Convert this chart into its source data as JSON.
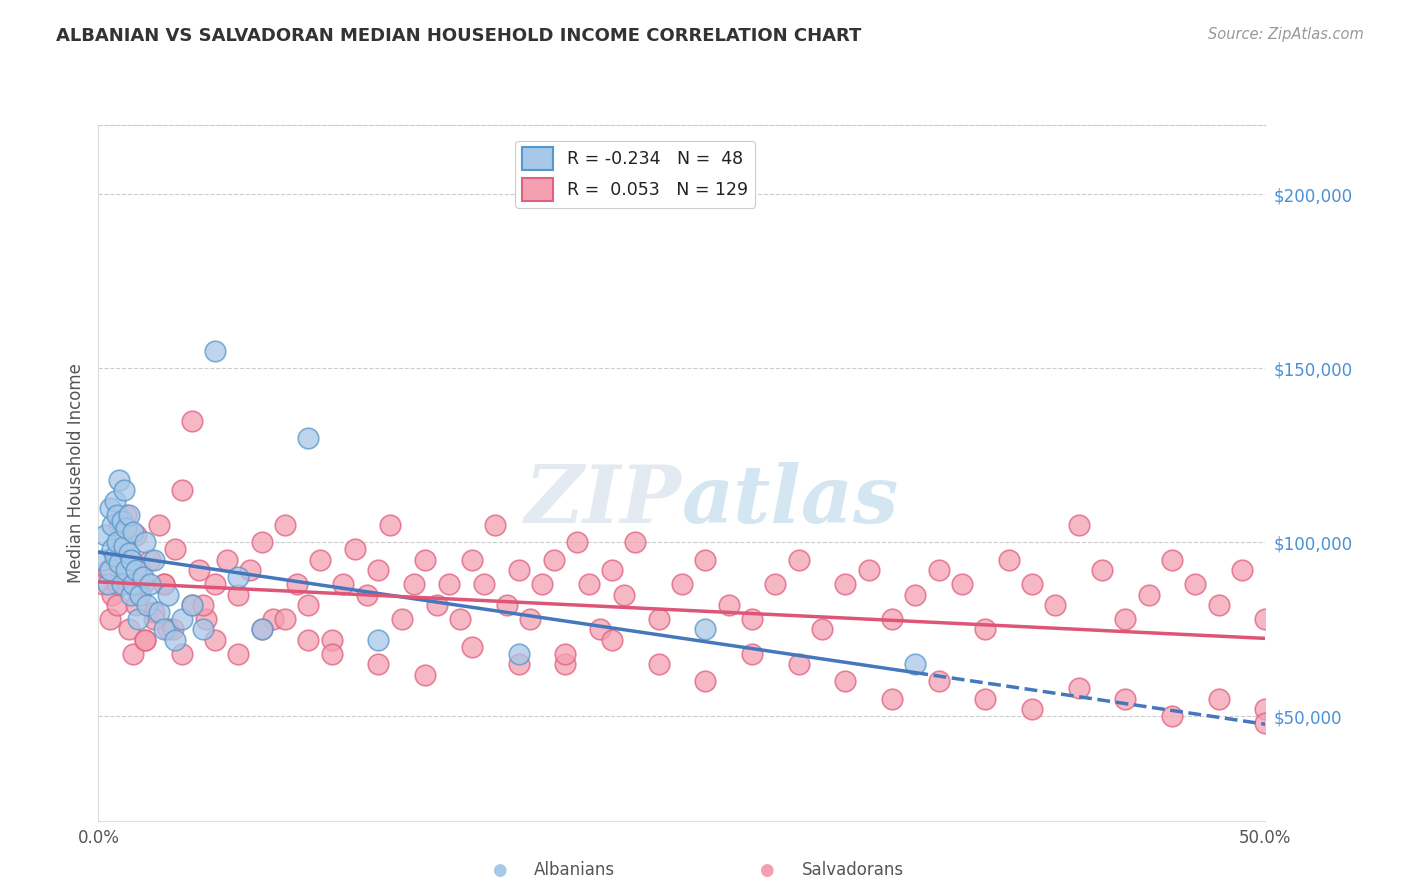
{
  "title": "ALBANIAN VS SALVADORAN MEDIAN HOUSEHOLD INCOME CORRELATION CHART",
  "source": "Source: ZipAtlas.com",
  "ylabel": "Median Household Income",
  "yticks": [
    50000,
    100000,
    150000,
    200000
  ],
  "ytick_labels": [
    "$50,000",
    "$100,000",
    "$150,000",
    "$200,000"
  ],
  "xmin": 0.0,
  "xmax": 0.5,
  "ymin": 20000,
  "ymax": 220000,
  "legend_r_albanian": "-0.234",
  "legend_n_albanian": "48",
  "legend_r_salvadoran": "0.053",
  "legend_n_salvadoran": "129",
  "albanian_fill": "#A8C8E8",
  "salvadoran_fill": "#F4A0B0",
  "albanian_edge": "#5599CC",
  "salvadoran_edge": "#E06080",
  "albanian_line": "#4477BB",
  "salvadoran_line": "#DD5577",
  "albanian_scatter_x": [
    0.002,
    0.003,
    0.004,
    0.005,
    0.005,
    0.006,
    0.006,
    0.007,
    0.007,
    0.008,
    0.008,
    0.009,
    0.009,
    0.01,
    0.01,
    0.011,
    0.011,
    0.012,
    0.012,
    0.013,
    0.013,
    0.014,
    0.014,
    0.015,
    0.015,
    0.016,
    0.017,
    0.018,
    0.019,
    0.02,
    0.021,
    0.022,
    0.024,
    0.026,
    0.028,
    0.03,
    0.033,
    0.036,
    0.04,
    0.045,
    0.05,
    0.06,
    0.07,
    0.09,
    0.12,
    0.18,
    0.26,
    0.35
  ],
  "albanian_scatter_y": [
    95000,
    102000,
    88000,
    92000,
    110000,
    98000,
    105000,
    96000,
    112000,
    100000,
    108000,
    94000,
    118000,
    106000,
    88000,
    115000,
    99000,
    104000,
    92000,
    97000,
    108000,
    85000,
    95000,
    103000,
    88000,
    92000,
    78000,
    85000,
    90000,
    100000,
    82000,
    88000,
    95000,
    80000,
    75000,
    85000,
    72000,
    78000,
    82000,
    75000,
    155000,
    90000,
    75000,
    130000,
    72000,
    68000,
    75000,
    65000
  ],
  "salvadoran_scatter_x": [
    0.002,
    0.004,
    0.005,
    0.006,
    0.007,
    0.008,
    0.009,
    0.01,
    0.011,
    0.012,
    0.013,
    0.014,
    0.015,
    0.016,
    0.017,
    0.018,
    0.019,
    0.02,
    0.022,
    0.024,
    0.026,
    0.028,
    0.03,
    0.033,
    0.036,
    0.04,
    0.043,
    0.046,
    0.05,
    0.055,
    0.06,
    0.065,
    0.07,
    0.075,
    0.08,
    0.085,
    0.09,
    0.095,
    0.1,
    0.105,
    0.11,
    0.115,
    0.12,
    0.125,
    0.13,
    0.135,
    0.14,
    0.145,
    0.15,
    0.155,
    0.16,
    0.165,
    0.17,
    0.175,
    0.18,
    0.185,
    0.19,
    0.195,
    0.2,
    0.205,
    0.21,
    0.215,
    0.22,
    0.225,
    0.23,
    0.24,
    0.25,
    0.26,
    0.27,
    0.28,
    0.29,
    0.3,
    0.31,
    0.32,
    0.33,
    0.34,
    0.35,
    0.36,
    0.37,
    0.38,
    0.39,
    0.4,
    0.41,
    0.42,
    0.43,
    0.44,
    0.45,
    0.46,
    0.47,
    0.48,
    0.49,
    0.5,
    0.008,
    0.012,
    0.016,
    0.02,
    0.024,
    0.028,
    0.032,
    0.036,
    0.04,
    0.045,
    0.05,
    0.06,
    0.07,
    0.08,
    0.09,
    0.1,
    0.12,
    0.14,
    0.16,
    0.18,
    0.2,
    0.22,
    0.24,
    0.26,
    0.28,
    0.3,
    0.32,
    0.34,
    0.36,
    0.38,
    0.4,
    0.42,
    0.44,
    0.46,
    0.48,
    0.5,
    0.5
  ],
  "salvadoran_scatter_y": [
    88000,
    92000,
    78000,
    85000,
    95000,
    82000,
    105000,
    98000,
    88000,
    108000,
    75000,
    95000,
    68000,
    102000,
    85000,
    92000,
    88000,
    72000,
    95000,
    80000,
    105000,
    88000,
    75000,
    98000,
    115000,
    82000,
    92000,
    78000,
    88000,
    95000,
    85000,
    92000,
    100000,
    78000,
    105000,
    88000,
    82000,
    95000,
    72000,
    88000,
    98000,
    85000,
    92000,
    105000,
    78000,
    88000,
    95000,
    82000,
    88000,
    78000,
    95000,
    88000,
    105000,
    82000,
    92000,
    78000,
    88000,
    95000,
    65000,
    100000,
    88000,
    75000,
    92000,
    85000,
    100000,
    78000,
    88000,
    95000,
    82000,
    78000,
    88000,
    95000,
    75000,
    88000,
    92000,
    78000,
    85000,
    92000,
    88000,
    75000,
    95000,
    88000,
    82000,
    105000,
    92000,
    78000,
    85000,
    95000,
    88000,
    82000,
    92000,
    78000,
    88000,
    95000,
    82000,
    72000,
    78000,
    88000,
    75000,
    68000,
    135000,
    82000,
    72000,
    68000,
    75000,
    78000,
    72000,
    68000,
    65000,
    62000,
    70000,
    65000,
    68000,
    72000,
    65000,
    60000,
    68000,
    65000,
    60000,
    55000,
    60000,
    55000,
    52000,
    58000,
    55000,
    50000,
    55000,
    52000,
    48000
  ]
}
